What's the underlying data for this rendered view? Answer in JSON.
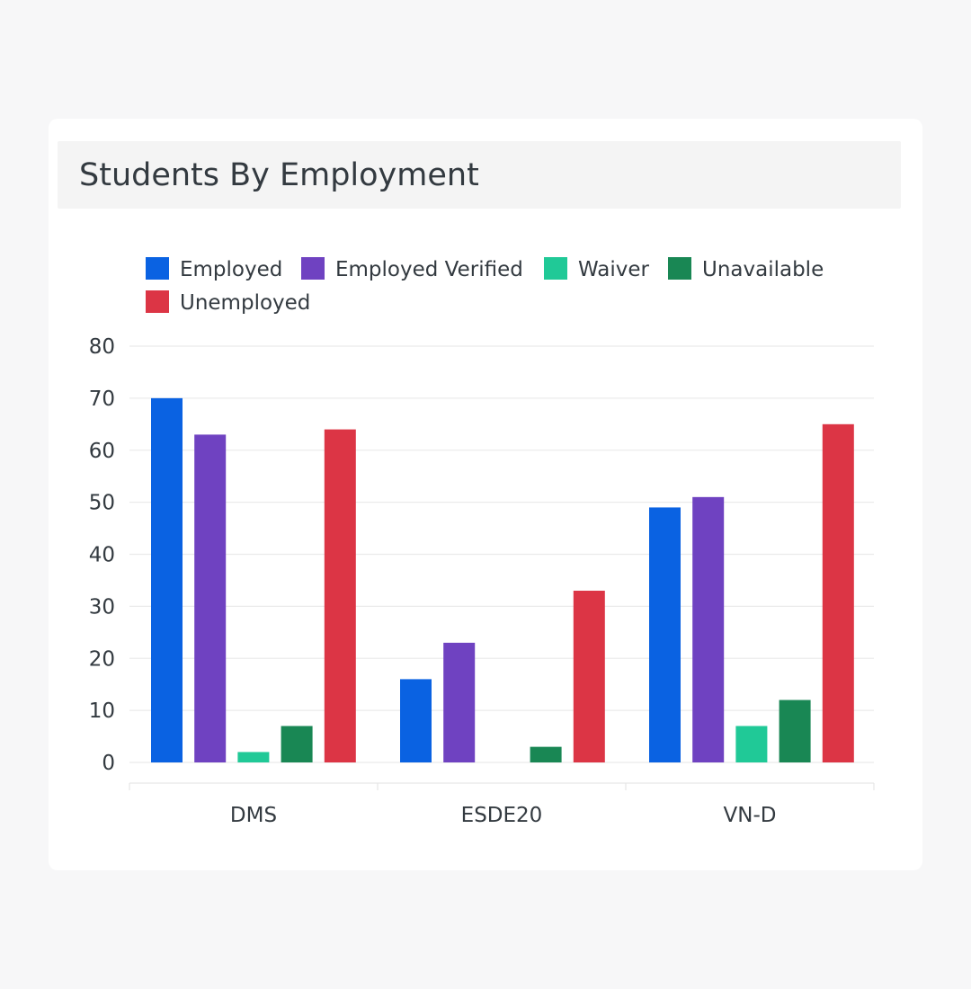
{
  "card": {
    "title": "Students By Employment"
  },
  "chart_data": {
    "type": "bar",
    "title": "Students By Employment",
    "categories": [
      "DMS",
      "ESDE20",
      "VN-D"
    ],
    "series": [
      {
        "name": "Employed",
        "color": "#0a62e2",
        "values": [
          70,
          16,
          49
        ]
      },
      {
        "name": "Employed Verified",
        "color": "#6f42c1",
        "values": [
          63,
          23,
          51
        ]
      },
      {
        "name": "Waiver",
        "color": "#20c997",
        "values": [
          2,
          0,
          7
        ]
      },
      {
        "name": "Unavailable",
        "color": "#198754",
        "values": [
          7,
          3,
          12
        ]
      },
      {
        "name": "Unemployed",
        "color": "#dc3545",
        "values": [
          64,
          33,
          65
        ]
      }
    ],
    "yticks": [
      0,
      10,
      20,
      30,
      40,
      50,
      60,
      70,
      80
    ],
    "ylim": [
      0,
      80
    ],
    "grid": true,
    "legend_position": "top"
  }
}
